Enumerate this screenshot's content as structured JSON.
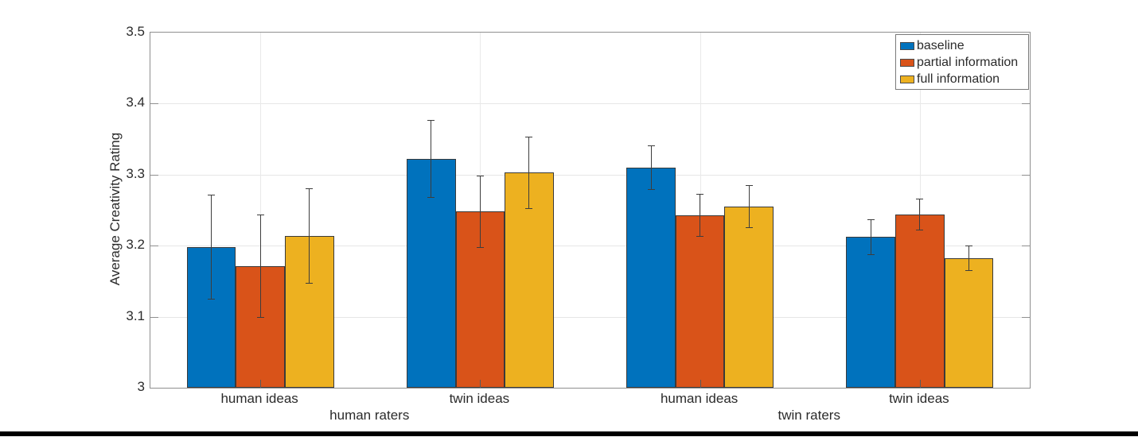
{
  "figure": {
    "background": "#ffffff",
    "bottom_bar_color": "#000000",
    "text_color": "#2b2b2b"
  },
  "chart_data": {
    "type": "bar",
    "title": "",
    "xlabel": "",
    "ylabel": "Average Creativity Rating",
    "ylim": [
      3.0,
      3.5
    ],
    "yticks": [
      3.0,
      3.1,
      3.2,
      3.3,
      3.4,
      3.5
    ],
    "ytick_labels": [
      "3",
      "3.1",
      "3.2",
      "3.3",
      "3.4",
      "3.5"
    ],
    "grid": "both",
    "legend_position": "top-right",
    "categories": [
      "human ideas",
      "twin ideas",
      "human ideas",
      "twin ideas"
    ],
    "category_sections": [
      {
        "label": "human raters",
        "spans_categories": [
          0,
          1
        ]
      },
      {
        "label": "twin raters",
        "spans_categories": [
          2,
          3
        ]
      }
    ],
    "series": [
      {
        "name": "baseline",
        "color": "#0072BD",
        "values": [
          3.198,
          3.322,
          3.31,
          3.212
        ],
        "error": [
          0.074,
          0.055,
          0.031,
          0.025
        ]
      },
      {
        "name": "partial information",
        "color": "#D95319",
        "values": [
          3.171,
          3.248,
          3.243,
          3.244
        ],
        "error": [
          0.073,
          0.051,
          0.03,
          0.022
        ]
      },
      {
        "name": "full information",
        "color": "#EDB120",
        "values": [
          3.214,
          3.303,
          3.255,
          3.182
        ],
        "error": [
          0.067,
          0.051,
          0.03,
          0.018
        ]
      }
    ],
    "error_bar_color": "#3d3d3d",
    "bar_edge_color": "#3a3a3a",
    "axis_color": "#8f8f8f",
    "grid_color": "#e6e6e6"
  }
}
